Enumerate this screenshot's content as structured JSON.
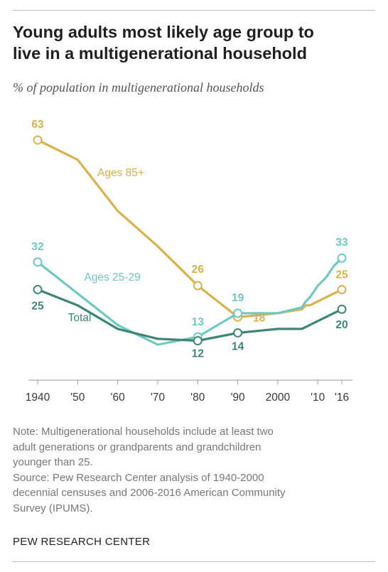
{
  "title_lines": [
    "Young adults most likely age group to",
    "live in a multigenerational household"
  ],
  "subtitle": "% of population in multigenerational households",
  "chart_data": {
    "type": "line",
    "x_ticks": [
      {
        "value": 1940,
        "label": "1940"
      },
      {
        "value": 1950,
        "label": "'50"
      },
      {
        "value": 1960,
        "label": "'60"
      },
      {
        "value": 1970,
        "label": "'70"
      },
      {
        "value": 1980,
        "label": "'80"
      },
      {
        "value": 1990,
        "label": "'90"
      },
      {
        "value": 2000,
        "label": "2000"
      },
      {
        "value": 2010,
        "label": "'10"
      },
      {
        "value": 2016,
        "label": "'16"
      }
    ],
    "xlim": [
      1940,
      2016
    ],
    "ylim": [
      0,
      65
    ],
    "grid": false,
    "series": [
      {
        "name": "Ages 85+",
        "color": "#D9B14B",
        "points": [
          [
            1940,
            63
          ],
          [
            1950,
            58
          ],
          [
            1960,
            45
          ],
          [
            1970,
            36
          ],
          [
            1980,
            26
          ],
          [
            1990,
            18
          ],
          [
            2000,
            19
          ],
          [
            2006,
            20
          ],
          [
            2007,
            21
          ],
          [
            2008,
            21
          ],
          [
            2009,
            21.5
          ],
          [
            2010,
            22
          ],
          [
            2011,
            22.5
          ],
          [
            2012,
            23
          ],
          [
            2013,
            23.5
          ],
          [
            2014,
            24
          ],
          [
            2015,
            24.5
          ],
          [
            2016,
            25
          ]
        ],
        "labels": [
          {
            "x": 1940,
            "y": 63,
            "text": "63"
          },
          {
            "x": 1980,
            "y": 26,
            "text": "26"
          },
          {
            "x": 1990,
            "y": 18,
            "text": "18"
          },
          {
            "x": 2016,
            "y": 25,
            "text": "25"
          }
        ]
      },
      {
        "name": "Ages 25-29",
        "color": "#6FC8C2",
        "points": [
          [
            1940,
            32
          ],
          [
            1950,
            24
          ],
          [
            1960,
            16
          ],
          [
            1970,
            11
          ],
          [
            1980,
            13
          ],
          [
            1990,
            19
          ],
          [
            2000,
            19
          ],
          [
            2006,
            20.5
          ],
          [
            2007,
            22
          ],
          [
            2008,
            23
          ],
          [
            2009,
            24.5
          ],
          [
            2010,
            26
          ],
          [
            2011,
            27
          ],
          [
            2012,
            28
          ],
          [
            2013,
            29.5
          ],
          [
            2014,
            31
          ],
          [
            2015,
            32
          ],
          [
            2016,
            33
          ]
        ],
        "labels": [
          {
            "x": 1940,
            "y": 32,
            "text": "32"
          },
          {
            "x": 1980,
            "y": 13,
            "text": "13"
          },
          {
            "x": 1990,
            "y": 19,
            "text": "19"
          },
          {
            "x": 2016,
            "y": 33,
            "text": "33"
          }
        ]
      },
      {
        "name": "Total",
        "color": "#3E8575",
        "points": [
          [
            1940,
            25
          ],
          [
            1950,
            21
          ],
          [
            1960,
            15
          ],
          [
            1970,
            12.5
          ],
          [
            1980,
            12
          ],
          [
            1990,
            14
          ],
          [
            2000,
            15
          ],
          [
            2006,
            15
          ],
          [
            2007,
            15.5
          ],
          [
            2008,
            16
          ],
          [
            2009,
            16.5
          ],
          [
            2010,
            17
          ],
          [
            2011,
            17.5
          ],
          [
            2012,
            18
          ],
          [
            2013,
            18.5
          ],
          [
            2014,
            19
          ],
          [
            2015,
            19.5
          ],
          [
            2016,
            20
          ]
        ],
        "labels": [
          {
            "x": 1940,
            "y": 25,
            "text": "25"
          },
          {
            "x": 1980,
            "y": 12,
            "text": "12"
          },
          {
            "x": 1990,
            "y": 14,
            "text": "14"
          },
          {
            "x": 2016,
            "y": 20,
            "text": "20"
          }
        ]
      }
    ]
  },
  "notes": [
    "Note: Multigenerational households include at least two",
    "adult generations or grandparents and grandchildren",
    "younger than 25.",
    "Source: Pew Research Center analysis of 1940-2000",
    "decennial censuses and 2006-2016 American Community",
    "Survey (IPUMS)."
  ],
  "brand": "PEW RESEARCH CENTER"
}
